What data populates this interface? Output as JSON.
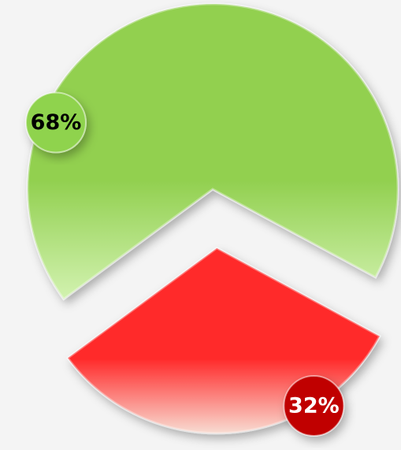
{
  "chart_data": {
    "type": "pie",
    "values": [
      68,
      32
    ],
    "value_labels": [
      "68%",
      "32%"
    ],
    "colors": [
      "#92d050",
      "#ff2b2b"
    ],
    "label_colors": [
      "#8fd34d",
      "#c00000"
    ]
  }
}
